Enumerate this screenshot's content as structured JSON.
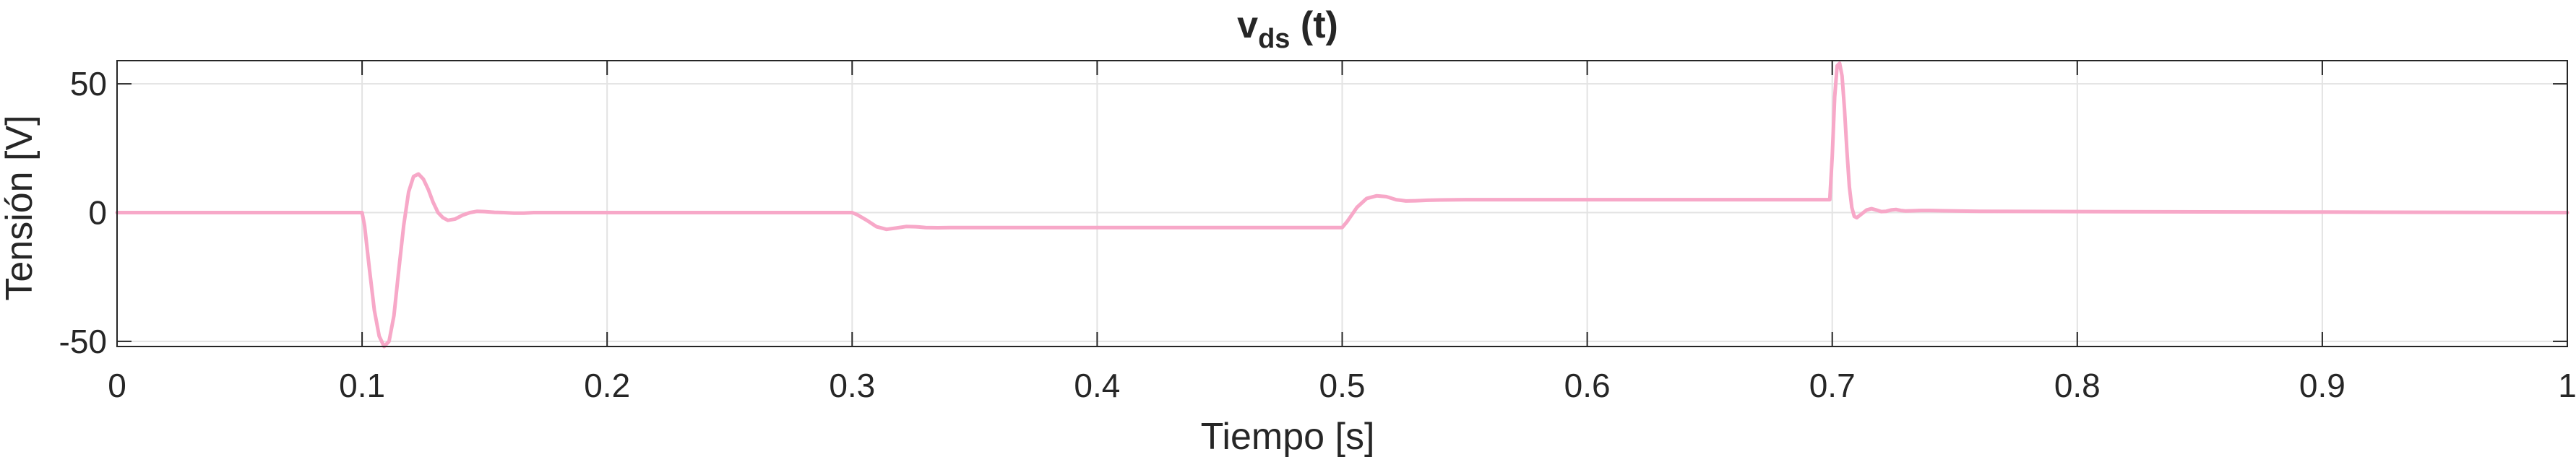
{
  "chart_data": {
    "type": "line",
    "title": "v",
    "title_subscript": "ds",
    "title_suffix": " (t)",
    "xlabel": "Tiempo [s]",
    "ylabel": "Tensión [V]",
    "xlim": [
      0,
      1
    ],
    "ylim": [
      -52,
      59
    ],
    "xticks": [
      0,
      0.1,
      0.2,
      0.3,
      0.4,
      0.5,
      0.6,
      0.7,
      0.8,
      0.9,
      1
    ],
    "xtick_labels": [
      "0",
      "0.1",
      "0.2",
      "0.3",
      "0.4",
      "0.5",
      "0.6",
      "0.7",
      "0.8",
      "0.9",
      "1"
    ],
    "yticks": [
      -50,
      0,
      50
    ],
    "ytick_labels": [
      "-50",
      "0",
      "50"
    ],
    "grid": true,
    "box": true,
    "line_color": "#f7a8c8",
    "series": [
      {
        "x": [
          0,
          0.1,
          0.101,
          0.103,
          0.105,
          0.107,
          0.109,
          0.111,
          0.113,
          0.115,
          0.117,
          0.119,
          0.121,
          0.123,
          0.125,
          0.127,
          0.129,
          0.131,
          0.133,
          0.135,
          0.138,
          0.141,
          0.144,
          0.147,
          0.15,
          0.154,
          0.158,
          0.162,
          0.166,
          0.17,
          0.175,
          0.18,
          0.19,
          0.2,
          0.3,
          0.302,
          0.306,
          0.31,
          0.314,
          0.318,
          0.322,
          0.326,
          0.33,
          0.335,
          0.34,
          0.35,
          0.4,
          0.45,
          0.5,
          0.502,
          0.506,
          0.51,
          0.514,
          0.518,
          0.522,
          0.526,
          0.53,
          0.535,
          0.54,
          0.55,
          0.6,
          0.65,
          0.699,
          0.7,
          0.701,
          0.702,
          0.703,
          0.704,
          0.705,
          0.706,
          0.707,
          0.708,
          0.709,
          0.71,
          0.712,
          0.714,
          0.716,
          0.718,
          0.72,
          0.722,
          0.724,
          0.726,
          0.728,
          0.73,
          0.733,
          0.736,
          0.74,
          0.745,
          0.75,
          0.76,
          0.8,
          0.9,
          1.0
        ],
        "y": [
          0,
          0,
          -5,
          -22,
          -38,
          -48,
          -52,
          -50,
          -40,
          -22,
          -5,
          8,
          14,
          15,
          13,
          9,
          4,
          0,
          -2,
          -3,
          -2.5,
          -1,
          0,
          0.5,
          0.4,
          0.1,
          0,
          -0.2,
          -0.2,
          0,
          0,
          0,
          0,
          0,
          0,
          -0.8,
          -3,
          -5.5,
          -6.5,
          -6,
          -5.4,
          -5.5,
          -5.8,
          -5.9,
          -5.8,
          -5.8,
          -5.8,
          -5.8,
          -5.8,
          -3.5,
          2,
          5.5,
          6.5,
          6.2,
          5,
          4.5,
          4.6,
          4.8,
          4.9,
          5,
          5,
          5,
          5,
          22,
          45,
          57,
          58,
          53,
          40,
          24,
          10,
          2,
          -1.5,
          -2,
          -0.5,
          1,
          1.5,
          1,
          0.4,
          0.5,
          1,
          1.2,
          0.8,
          0.6,
          0.7,
          0.8,
          0.8,
          0.7,
          0.6,
          0.5,
          0.4,
          0.2,
          0
        ]
      }
    ]
  }
}
